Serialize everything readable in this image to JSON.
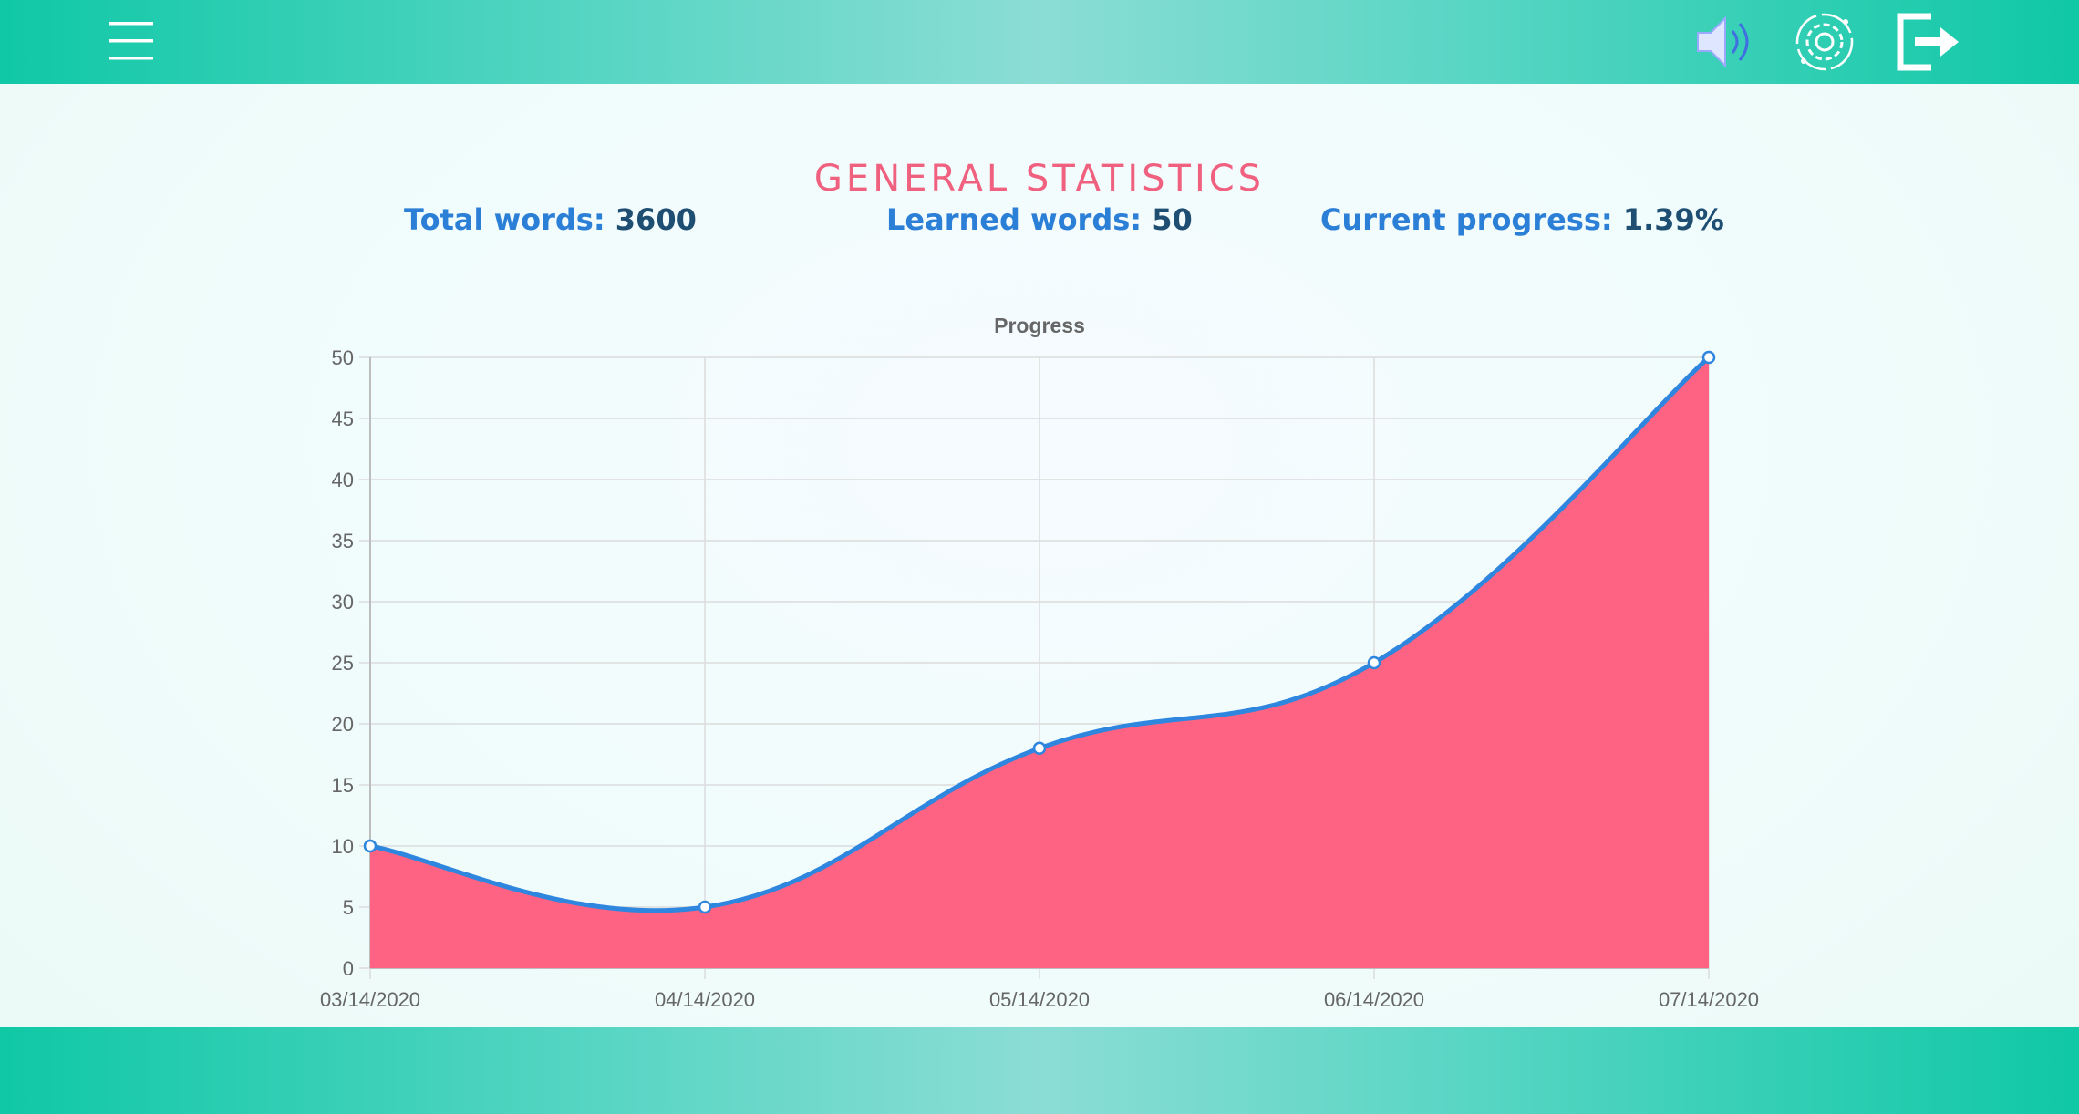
{
  "header": {
    "menu_icon": "hamburger-menu-icon",
    "sound_icon": "speaker-icon",
    "settings_icon": "gear-icon",
    "logout_icon": "logout-icon"
  },
  "page": {
    "title": "GENERAL STATISTICS"
  },
  "stats": {
    "total_label": "Total words:",
    "total_value": "3600",
    "learned_label": "Learned words:",
    "learned_value": "50",
    "progress_label": "Current progress:",
    "progress_value": "1.39%"
  },
  "colors": {
    "accent": "#f0607f",
    "label_blue": "#2b7fd6",
    "value_navy": "#1f4e73",
    "area_fill": "#ff6384",
    "line": "#2e86de",
    "bar_teal": "#0fc8a6"
  },
  "chart_data": {
    "type": "area",
    "title": "Progress",
    "x": [
      "03/14/2020",
      "04/14/2020",
      "05/14/2020",
      "06/14/2020",
      "07/14/2020"
    ],
    "series": [
      {
        "values": [
          10,
          5,
          18,
          25,
          50
        ]
      }
    ],
    "ylim": [
      0,
      50
    ],
    "yticks": [
      0,
      5,
      10,
      15,
      20,
      25,
      30,
      35,
      40,
      45,
      50
    ],
    "xlabel": "",
    "ylabel": "",
    "grid": true,
    "legend": "none"
  }
}
